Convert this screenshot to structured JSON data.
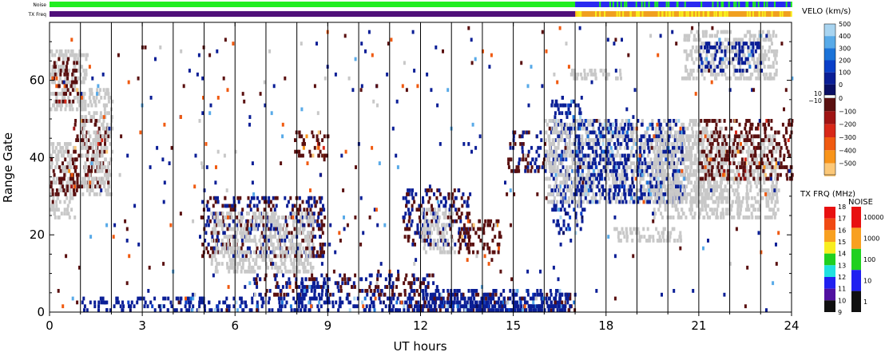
{
  "chart_data": {
    "type": "heatmap",
    "title": "",
    "xlabel": "UT hours",
    "ylabel": "Range Gate",
    "xlim": [
      0,
      24
    ],
    "ylim": [
      0,
      75
    ],
    "x_ticks": [
      0,
      3,
      6,
      9,
      12,
      15,
      18,
      21,
      24
    ],
    "y_ticks": [
      0,
      20,
      40,
      60
    ],
    "x_tick_labels": [
      "0",
      "3",
      "6",
      "9",
      "12",
      "15",
      "18",
      "21",
      "24"
    ],
    "y_tick_labels": [
      "0",
      "20",
      "40",
      "60"
    ],
    "hour_lines": [
      1,
      2,
      3,
      4,
      5,
      6,
      7,
      8,
      9,
      10,
      11,
      12,
      13,
      14,
      15,
      16,
      17,
      18,
      19,
      20,
      21,
      22,
      23
    ],
    "ground_scatter_color": "#c8c8c8",
    "regions": [
      {
        "kind": "ground",
        "x": [
          0.0,
          0.8
        ],
        "y": [
          24,
          44
        ]
      },
      {
        "kind": "neg",
        "x": [
          0.0,
          0.9
        ],
        "y": [
          30,
          40
        ]
      },
      {
        "kind": "ground",
        "x": [
          0.0,
          1.2
        ],
        "y": [
          52,
          68
        ]
      },
      {
        "kind": "neg",
        "x": [
          0.1,
          0.9
        ],
        "y": [
          54,
          66
        ]
      },
      {
        "kind": "neg",
        "x": [
          0.7,
          1.9
        ],
        "y": [
          32,
          50
        ]
      },
      {
        "kind": "ground",
        "x": [
          1.0,
          2.0
        ],
        "y": [
          30,
          58
        ]
      },
      {
        "kind": "mix",
        "x": [
          4.9,
          8.9
        ],
        "y": [
          14,
          30
        ]
      },
      {
        "kind": "ground",
        "x": [
          5.2,
          8.5
        ],
        "y": [
          10,
          26
        ]
      },
      {
        "kind": "neg",
        "x": [
          7.9,
          9.0
        ],
        "y": [
          40,
          47
        ]
      },
      {
        "kind": "mix",
        "x": [
          11.4,
          13.6
        ],
        "y": [
          17,
          32
        ]
      },
      {
        "kind": "ground",
        "x": [
          12.0,
          13.0
        ],
        "y": [
          15,
          27
        ]
      },
      {
        "kind": "neg",
        "x": [
          13.2,
          14.6
        ],
        "y": [
          15,
          24
        ]
      },
      {
        "kind": "mix",
        "x": [
          14.8,
          16.2
        ],
        "y": [
          36,
          47
        ]
      },
      {
        "kind": "pos",
        "x": [
          16.2,
          17.2
        ],
        "y": [
          20,
          56
        ]
      },
      {
        "kind": "ground",
        "x": [
          16.0,
          21.8
        ],
        "y": [
          28,
          50
        ]
      },
      {
        "kind": "pos",
        "x": [
          17.0,
          20.5
        ],
        "y": [
          28,
          50
        ]
      },
      {
        "kind": "ground",
        "x": [
          19.5,
          23.6
        ],
        "y": [
          24,
          46
        ]
      },
      {
        "kind": "neg",
        "x": [
          21.0,
          24.0
        ],
        "y": [
          34,
          50
        ]
      },
      {
        "kind": "ground",
        "x": [
          20.5,
          23.5
        ],
        "y": [
          60,
          73
        ]
      },
      {
        "kind": "pos",
        "x": [
          21.0,
          23.0
        ],
        "y": [
          62,
          70
        ]
      },
      {
        "kind": "ground",
        "x": [
          18.2,
          20.4
        ],
        "y": [
          18,
          22
        ]
      },
      {
        "kind": "ground",
        "x": [
          16.8,
          18.5
        ],
        "y": [
          60,
          63
        ]
      },
      {
        "kind": "pos",
        "x": [
          1.0,
          16.8
        ],
        "y": [
          0,
          4
        ]
      },
      {
        "kind": "mix",
        "x": [
          6.5,
          12.5
        ],
        "y": [
          4,
          10
        ]
      },
      {
        "kind": "pos",
        "x": [
          7.9,
          9.0
        ],
        "y": [
          2,
          9
        ]
      },
      {
        "kind": "mix",
        "x": [
          11.5,
          17.0
        ],
        "y": [
          0,
          5
        ]
      },
      {
        "kind": "pos",
        "x": [
          12.0,
          16.8
        ],
        "y": [
          0,
          6
        ]
      },
      {
        "kind": "pos",
        "x": [
          12.5,
          17.0
        ],
        "y": [
          0,
          3
        ]
      }
    ],
    "velocity_scale": {
      "title": "VELO (km/s)",
      "labels_pos": [
        "500",
        "400",
        "300",
        "200",
        "100",
        "0"
      ],
      "labels_neg": [
        "0",
        "−100",
        "−200",
        "−300",
        "−400",
        "−500"
      ],
      "marker_left_top": "10",
      "marker_left_bottom": "−10",
      "colors_pos": [
        "#a8d4f0",
        "#58aae8",
        "#1b73d8",
        "#0a3fc8",
        "#0a1e96",
        "#0a0f64"
      ],
      "colors_neg": [
        "#5a1010",
        "#a01414",
        "#d82818",
        "#f05a10",
        "#f8941a",
        "#fcc878"
      ]
    },
    "txfrq_scale": {
      "title": "TX FRQ (MHz)",
      "labels": [
        "18",
        "17",
        "16",
        "15",
        "14",
        "13",
        "12",
        "11",
        "10",
        "9"
      ],
      "colors": [
        "#e81010",
        "#f04a14",
        "#f8a020",
        "#f8ee20",
        "#20d020",
        "#20e0e0",
        "#2020f0",
        "#5010a0",
        "#101010"
      ]
    },
    "noise_scale": {
      "title": "NOISE",
      "labels": [
        "10000",
        "1000",
        "100",
        "10",
        "1"
      ],
      "colors": [
        "#e81010",
        "#f8a020",
        "#20d020",
        "#2020f0",
        "#101010"
      ]
    },
    "status_bars": {
      "noise_label": "Noise",
      "txfrq_label": "TX Freq",
      "noise_change_hour": 17,
      "noise_before": "#22ee22",
      "noise_after": "#2a2af0",
      "txfrq_change_hour": 17,
      "txfrq_before": "#50107a",
      "txfrq_after": "#f0a020"
    }
  }
}
